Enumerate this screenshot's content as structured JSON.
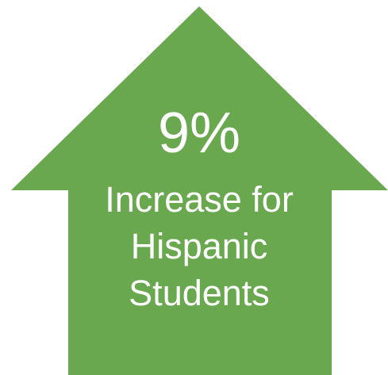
{
  "arrow": {
    "color": "#6aa84f",
    "value": "9%",
    "lines": [
      "Increase for",
      "Hispanic",
      "Students"
    ]
  }
}
